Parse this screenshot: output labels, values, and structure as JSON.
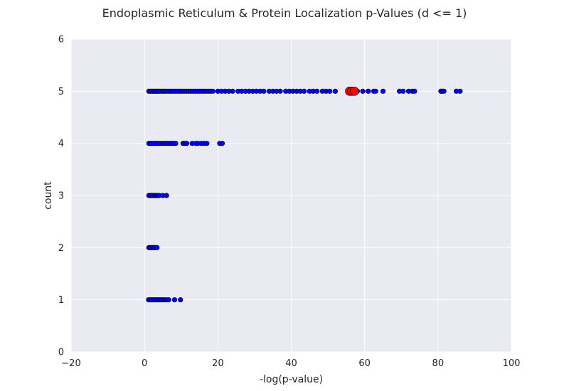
{
  "chart_data": {
    "type": "scatter",
    "title": "Endoplasmic Reticulum & Protein Localization p-Values (d <= 1)",
    "xlabel": "-log(p-value)",
    "ylabel": "count",
    "xlim": [
      -20,
      100
    ],
    "ylim": [
      0,
      6
    ],
    "xticks": [
      "−20",
      "0",
      "20",
      "40",
      "60",
      "80",
      "100"
    ],
    "yticks": [
      "0",
      "1",
      "2",
      "3",
      "4",
      "5",
      "6"
    ],
    "grid": true,
    "colors": {
      "background": "#eaeaf2",
      "grid": "#ffffff",
      "points": "#0000ff",
      "highlight": "#ff0000"
    },
    "series": [
      {
        "color": "#0000ff",
        "points": [
          [
            1.2,
            5
          ],
          [
            1.6,
            5
          ],
          [
            2.0,
            5
          ],
          [
            2.4,
            5
          ],
          [
            2.8,
            5
          ],
          [
            3.2,
            5
          ],
          [
            3.6,
            5
          ],
          [
            4.0,
            5
          ],
          [
            4.5,
            5
          ],
          [
            5.0,
            5
          ],
          [
            5.5,
            5
          ],
          [
            6.0,
            5
          ],
          [
            6.5,
            5
          ],
          [
            7.0,
            5
          ],
          [
            7.5,
            5
          ],
          [
            8.0,
            5
          ],
          [
            8.5,
            5
          ],
          [
            9.0,
            5
          ],
          [
            9.6,
            5
          ],
          [
            10.2,
            5
          ],
          [
            10.8,
            5
          ],
          [
            11.4,
            5
          ],
          [
            12.0,
            5
          ],
          [
            12.6,
            5
          ],
          [
            13.2,
            5
          ],
          [
            13.8,
            5
          ],
          [
            14.4,
            5
          ],
          [
            15.0,
            5
          ],
          [
            15.6,
            5
          ],
          [
            16.2,
            5
          ],
          [
            16.8,
            5
          ],
          [
            17.4,
            5
          ],
          [
            18.0,
            5
          ],
          [
            18.6,
            5
          ],
          [
            20.0,
            5
          ],
          [
            21.0,
            5
          ],
          [
            22.0,
            5
          ],
          [
            23.0,
            5
          ],
          [
            24.0,
            5
          ],
          [
            25.5,
            5
          ],
          [
            26.5,
            5
          ],
          [
            27.5,
            5
          ],
          [
            28.5,
            5
          ],
          [
            29.5,
            5
          ],
          [
            30.5,
            5
          ],
          [
            31.5,
            5
          ],
          [
            32.5,
            5
          ],
          [
            34.0,
            5
          ],
          [
            35.0,
            5
          ],
          [
            36.0,
            5
          ],
          [
            37.0,
            5
          ],
          [
            38.5,
            5
          ],
          [
            39.5,
            5
          ],
          [
            40.5,
            5
          ],
          [
            41.5,
            5
          ],
          [
            42.5,
            5
          ],
          [
            43.5,
            5
          ],
          [
            45.0,
            5
          ],
          [
            46.0,
            5
          ],
          [
            47.0,
            5
          ],
          [
            48.5,
            5
          ],
          [
            49.5,
            5
          ],
          [
            50.5,
            5
          ],
          [
            52.0,
            5
          ],
          [
            58.0,
            5
          ],
          [
            59.5,
            5
          ],
          [
            61.0,
            5
          ],
          [
            62.5,
            5
          ],
          [
            63.0,
            5
          ],
          [
            65.0,
            5
          ],
          [
            69.5,
            5
          ],
          [
            70.5,
            5
          ],
          [
            72.0,
            5
          ],
          [
            73.0,
            5
          ],
          [
            73.6,
            5
          ],
          [
            80.8,
            5
          ],
          [
            81.2,
            5
          ],
          [
            81.6,
            5
          ],
          [
            85.0,
            5
          ],
          [
            86.0,
            5
          ],
          [
            1.2,
            4
          ],
          [
            1.6,
            4
          ],
          [
            2.0,
            4
          ],
          [
            2.5,
            4
          ],
          [
            3.0,
            4
          ],
          [
            3.5,
            4
          ],
          [
            4.0,
            4
          ],
          [
            4.5,
            4
          ],
          [
            5.0,
            4
          ],
          [
            5.5,
            4
          ],
          [
            6.0,
            4
          ],
          [
            6.5,
            4
          ],
          [
            7.0,
            4
          ],
          [
            7.5,
            4
          ],
          [
            8.0,
            4
          ],
          [
            8.5,
            4
          ],
          [
            10.5,
            4
          ],
          [
            11.0,
            4
          ],
          [
            11.5,
            4
          ],
          [
            13.0,
            4
          ],
          [
            14.0,
            4
          ],
          [
            14.6,
            4
          ],
          [
            15.5,
            4
          ],
          [
            16.2,
            4
          ],
          [
            17.0,
            4
          ],
          [
            20.5,
            4
          ],
          [
            21.2,
            4
          ],
          [
            1.2,
            3
          ],
          [
            1.5,
            3
          ],
          [
            1.8,
            3
          ],
          [
            2.1,
            3
          ],
          [
            2.4,
            3
          ],
          [
            2.7,
            3
          ],
          [
            3.0,
            3
          ],
          [
            3.3,
            3
          ],
          [
            3.6,
            3
          ],
          [
            4.0,
            3
          ],
          [
            5.0,
            3
          ],
          [
            6.0,
            3
          ],
          [
            1.2,
            2
          ],
          [
            1.5,
            2
          ],
          [
            1.8,
            2
          ],
          [
            2.1,
            2
          ],
          [
            2.4,
            2
          ],
          [
            2.7,
            2
          ],
          [
            3.0,
            2
          ],
          [
            3.4,
            2
          ],
          [
            1.1,
            1
          ],
          [
            1.5,
            1
          ],
          [
            1.9,
            1
          ],
          [
            2.3,
            1
          ],
          [
            2.7,
            1
          ],
          [
            3.1,
            1
          ],
          [
            3.5,
            1
          ],
          [
            3.9,
            1
          ],
          [
            4.3,
            1
          ],
          [
            4.7,
            1
          ],
          [
            5.1,
            1
          ],
          [
            5.5,
            1
          ],
          [
            6.0,
            1
          ],
          [
            6.6,
            1
          ],
          [
            8.2,
            1
          ],
          [
            9.8,
            1
          ]
        ]
      },
      {
        "color": "#ff0000",
        "highlight": true,
        "points": [
          [
            55.9,
            5
          ],
          [
            56.5,
            5
          ],
          [
            57.2,
            5
          ]
        ]
      }
    ]
  }
}
